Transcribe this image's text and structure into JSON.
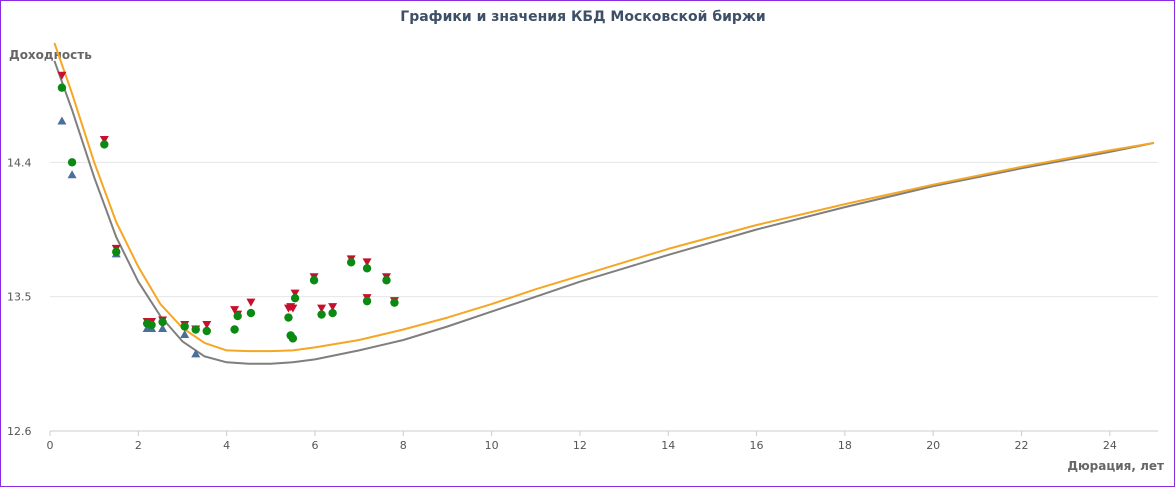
{
  "chart_data": {
    "type": "scatter",
    "title": "Графики и значения КБД Московской биржи",
    "ylabel": "Доходность",
    "xlabel": "Дюрация, лет",
    "xlim": [
      0,
      25
    ],
    "ylim": [
      12.6,
      15.3
    ],
    "x_ticks": [
      0,
      2,
      4,
      6,
      8,
      10,
      12,
      14,
      16,
      18,
      20,
      22,
      24
    ],
    "y_ticks": [
      12.6,
      13.5,
      14.4
    ],
    "y_tick_labels": [
      "12.6",
      "13.5",
      "14.4"
    ],
    "grid": true,
    "colors": {
      "curve_orange": "#f5a623",
      "curve_gray": "#7f7f7f",
      "ask_red": "#c8102e",
      "bid_blue": "#4a6f9a",
      "close_green": "#0a8a12"
    },
    "curves": [
      {
        "color_key": "curve_orange",
        "x": [
          0.1,
          0.5,
          1,
          1.5,
          2,
          2.5,
          3,
          3.5,
          4,
          4.5,
          5,
          5.5,
          6,
          7,
          8,
          9,
          10,
          11,
          12,
          13,
          14,
          16,
          18,
          20,
          22,
          24,
          25
        ],
        "values": [
          15.2,
          14.86,
          14.4,
          14.0,
          13.7,
          13.45,
          13.29,
          13.19,
          13.14,
          13.135,
          13.135,
          13.14,
          13.16,
          13.21,
          13.28,
          13.36,
          13.45,
          13.55,
          13.64,
          13.73,
          13.82,
          13.98,
          14.12,
          14.25,
          14.37,
          14.48,
          14.53
        ]
      },
      {
        "color_key": "curve_gray",
        "x": [
          0.1,
          0.5,
          1,
          1.5,
          2,
          2.5,
          3,
          3.5,
          4,
          4.5,
          5,
          5.5,
          6,
          7,
          8,
          9,
          10,
          11,
          12,
          13,
          14,
          16,
          18,
          20,
          22,
          24,
          25
        ],
        "values": [
          15.08,
          14.75,
          14.3,
          13.9,
          13.6,
          13.37,
          13.2,
          13.1,
          13.06,
          13.05,
          13.05,
          13.06,
          13.08,
          13.14,
          13.21,
          13.3,
          13.4,
          13.5,
          13.6,
          13.69,
          13.78,
          13.95,
          14.1,
          14.24,
          14.36,
          14.47,
          14.53
        ]
      }
    ],
    "points": [
      {
        "type": "ask",
        "color_key": "ask_red",
        "x": [
          0.27,
          1.23,
          1.5,
          2.2,
          2.3,
          2.55,
          3.05,
          3.3,
          3.55,
          4.18,
          4.25,
          4.55,
          5.4,
          5.45,
          5.5,
          5.55,
          5.98,
          6.15,
          6.4,
          6.82,
          7.18,
          7.18,
          7.62,
          7.8
        ],
        "values": [
          14.98,
          14.55,
          13.82,
          13.33,
          13.33,
          13.34,
          13.31,
          13.28,
          13.31,
          13.41,
          13.38,
          13.46,
          13.42,
          13.43,
          13.42,
          13.52,
          13.63,
          13.42,
          13.43,
          13.75,
          13.73,
          13.49,
          13.63,
          13.47
        ]
      },
      {
        "type": "bid",
        "color_key": "bid_blue",
        "x": [
          0.27,
          0.5,
          1.5,
          2.2,
          2.3,
          2.55,
          3.05,
          3.3
        ],
        "values": [
          14.68,
          14.32,
          13.79,
          13.29,
          13.29,
          13.29,
          13.25,
          13.12
        ]
      },
      {
        "type": "close",
        "color_key": "close_green",
        "x": [
          0.27,
          0.5,
          1.23,
          1.5,
          2.2,
          2.3,
          2.55,
          3.05,
          3.3,
          3.55,
          4.18,
          4.25,
          4.55,
          5.4,
          5.45,
          5.5,
          5.55,
          5.98,
          6.15,
          6.4,
          6.82,
          7.18,
          7.18,
          7.62,
          7.8
        ],
        "values": [
          14.9,
          14.4,
          14.52,
          13.8,
          13.32,
          13.31,
          13.33,
          13.3,
          13.28,
          13.27,
          13.28,
          13.37,
          13.39,
          13.36,
          13.24,
          13.22,
          13.49,
          13.61,
          13.38,
          13.39,
          13.73,
          13.69,
          13.47,
          13.61,
          13.46
        ]
      }
    ]
  }
}
